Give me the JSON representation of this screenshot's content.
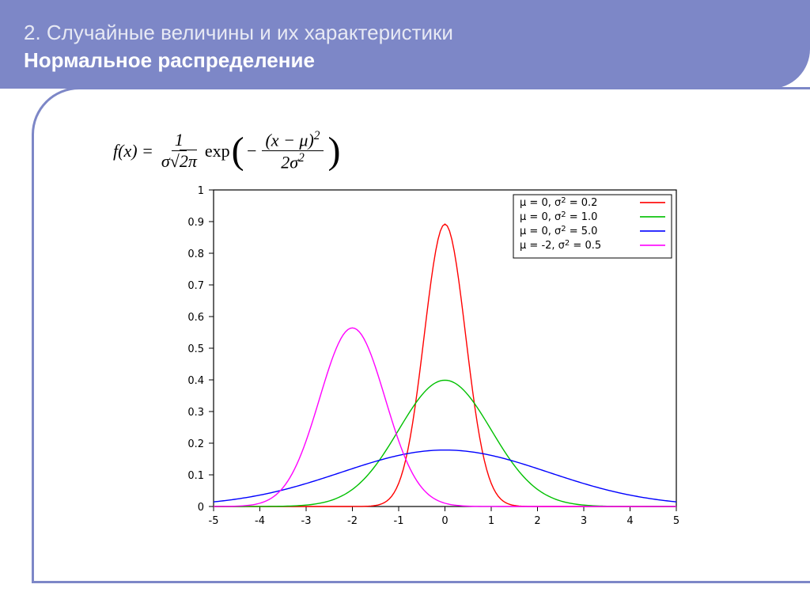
{
  "header": {
    "line1": "2. Случайные величины и их характеристики",
    "line2": "Нормальное распределение"
  },
  "formula": {
    "lhs": "f(x) =",
    "frac1_num": "1",
    "frac1_den_html": "σ√(2π)",
    "exp": "exp",
    "neg": "−",
    "frac2_num_html": "(x − μ)²",
    "frac2_den_html": "2σ²"
  },
  "chart": {
    "type": "line",
    "background_color": "#ffffff",
    "plot_border_color": "#000000",
    "tick_color": "#000000",
    "tick_fontsize": 13,
    "xlim": [
      -5,
      5
    ],
    "ylim": [
      0,
      1
    ],
    "xticks": [
      -5,
      -4,
      -3,
      -2,
      -1,
      0,
      1,
      2,
      3,
      4,
      5
    ],
    "yticks": [
      0,
      0.1,
      0.2,
      0.3,
      0.4,
      0.5,
      0.6,
      0.7,
      0.8,
      0.9,
      1
    ],
    "legend": {
      "position": "top-right",
      "border_color": "#000000",
      "bg_color": "#ffffff",
      "fontsize": 13,
      "items": [
        {
          "label_mu": "0",
          "label_sig2": "0.2",
          "color": "#ff0000"
        },
        {
          "label_mu": "0",
          "label_sig2": "1.0",
          "color": "#00c000"
        },
        {
          "label_mu": "0",
          "label_sig2": "5.0",
          "color": "#0000ff"
        },
        {
          "label_mu": "-2",
          "label_sig2": "0.5",
          "color": "#ff00ff"
        }
      ]
    },
    "series": [
      {
        "mu": 0,
        "var": 0.2,
        "color": "#ff0000",
        "width": 1.4
      },
      {
        "mu": 0,
        "var": 1.0,
        "color": "#00c000",
        "width": 1.4
      },
      {
        "mu": 0,
        "var": 5.0,
        "color": "#0000ff",
        "width": 1.4
      },
      {
        "mu": -2,
        "var": 0.5,
        "color": "#ff00ff",
        "width": 1.4
      }
    ],
    "x_samples": {
      "start": -5,
      "end": 5,
      "step": 0.05
    }
  }
}
